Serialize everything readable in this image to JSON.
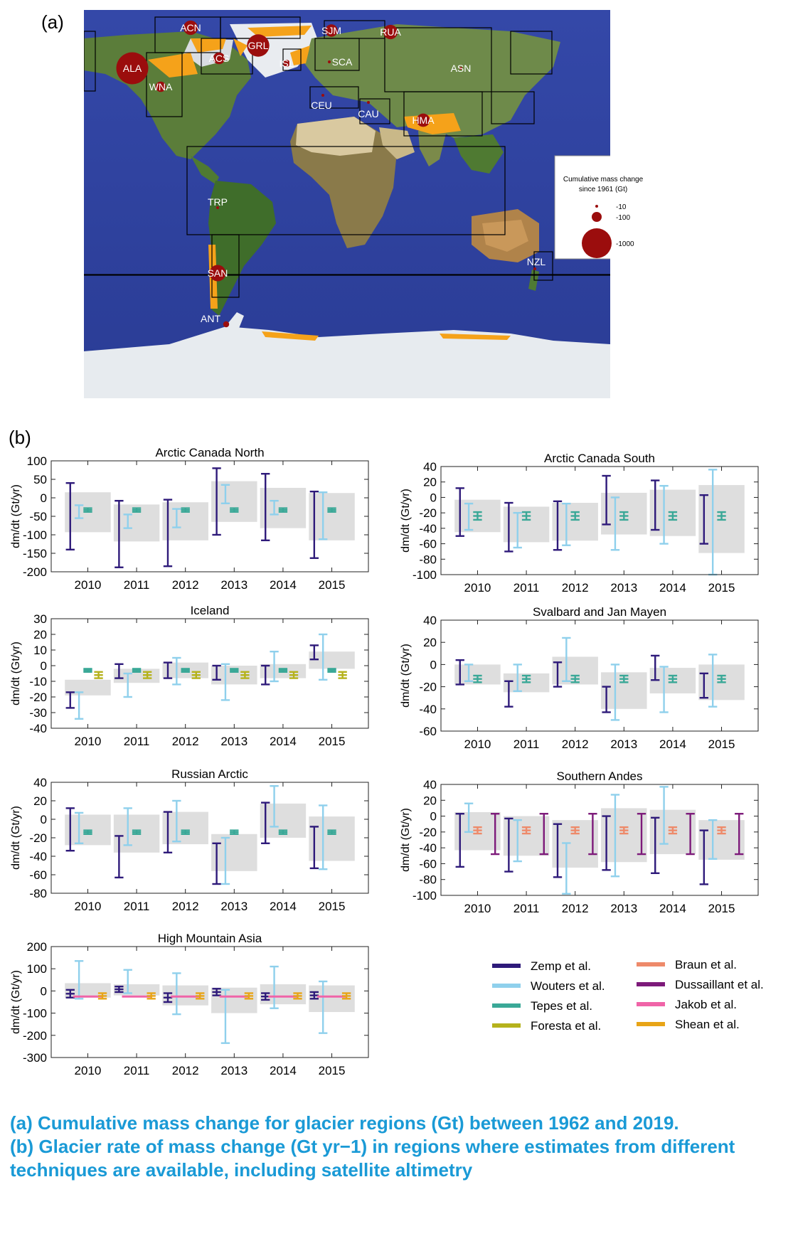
{
  "panel_a_label": "(a)",
  "panel_b_label": "(b)",
  "map": {
    "regions": [
      {
        "code": "ALA",
        "mass_gt": -1150
      },
      {
        "code": "ACN",
        "mass_gt": -230
      },
      {
        "code": "GRL",
        "mass_gt": -560
      },
      {
        "code": "SJM",
        "mass_gt": -170
      },
      {
        "code": "RUA",
        "mass_gt": -230
      },
      {
        "code": "ACS",
        "mass_gt": -155
      },
      {
        "code": "ISL",
        "mass_gt": -55
      },
      {
        "code": "SCA",
        "mass_gt": -5
      },
      {
        "code": "ASN",
        "mass_gt": -3
      },
      {
        "code": "WNA",
        "mass_gt": -120
      },
      {
        "code": "CEU",
        "mass_gt": -8
      },
      {
        "code": "CAU",
        "mass_gt": -5
      },
      {
        "code": "HMA",
        "mass_gt": -200
      },
      {
        "code": "TRP",
        "mass_gt": -5
      },
      {
        "code": "SAN",
        "mass_gt": -300
      },
      {
        "code": "NZL",
        "mass_gt": -5
      },
      {
        "code": "ANT",
        "mass_gt": -40
      }
    ],
    "legend": {
      "title_line1": "Cumulative mass change",
      "title_line2": "since 1961 (Gt)",
      "entries": [
        "-10",
        "-100",
        "-1000"
      ]
    }
  },
  "chart_data": [
    {
      "type": "errorbar",
      "title": "Arctic Canada North",
      "ylabel": "dm/dt (Gt/yr)",
      "ylim": [
        -200,
        100
      ],
      "yticks": [
        100,
        50,
        0,
        -50,
        -100,
        -150,
        -200
      ],
      "categories": [
        "2010",
        "2011",
        "2012",
        "2013",
        "2014",
        "2015"
      ],
      "grey_boxes": [
        [
          -93,
          15
        ],
        [
          -118,
          -18
        ],
        [
          -115,
          -12
        ],
        [
          -65,
          45
        ],
        [
          -82,
          27
        ],
        [
          -115,
          13
        ]
      ],
      "series": [
        {
          "name": "Zemp et al.",
          "intervals": [
            [
              -140,
              40
            ],
            [
              -188,
              -8
            ],
            [
              -185,
              -5
            ],
            [
              -100,
              80
            ],
            [
              -115,
              65
            ],
            [
              -163,
              17
            ]
          ]
        },
        {
          "name": "Wouters et al.",
          "intervals": [
            [
              -55,
              -20
            ],
            [
              -82,
              -45
            ],
            [
              -80,
              -30
            ],
            [
              -15,
              35
            ],
            [
              -45,
              -8
            ],
            [
              -112,
              15
            ]
          ]
        },
        {
          "name": "Tepes et al.",
          "intervals": [
            [
              -38,
              -28
            ],
            [
              -38,
              -28
            ],
            [
              -38,
              -28
            ],
            [
              -38,
              -28
            ],
            [
              -38,
              -28
            ],
            [
              -38,
              -28
            ]
          ]
        }
      ]
    },
    {
      "type": "errorbar",
      "title": "Arctic Canada South",
      "ylabel": "dm/dt (Gt/yr)",
      "ylim": [
        -100,
        40
      ],
      "yticks": [
        40,
        20,
        0,
        -20,
        -40,
        -60,
        -80,
        -100
      ],
      "categories": [
        "2010",
        "2011",
        "2012",
        "2013",
        "2014",
        "2015"
      ],
      "grey_boxes": [
        [
          -45,
          -3
        ],
        [
          -58,
          -12
        ],
        [
          -56,
          -7
        ],
        [
          -48,
          6
        ],
        [
          -50,
          10
        ],
        [
          -72,
          16
        ]
      ],
      "series": [
        {
          "name": "Zemp et al.",
          "intervals": [
            [
              -50,
              12
            ],
            [
              -70,
              -7
            ],
            [
              -68,
              -5
            ],
            [
              -35,
              28
            ],
            [
              -42,
              22
            ],
            [
              -60,
              3
            ]
          ]
        },
        {
          "name": "Wouters et al.",
          "intervals": [
            [
              -42,
              -8
            ],
            [
              -65,
              -20
            ],
            [
              -62,
              -8
            ],
            [
              -68,
              0
            ],
            [
              -60,
              15
            ],
            [
              -100,
              36
            ]
          ]
        },
        {
          "name": "Tepes et al.",
          "intervals": [
            [
              -29,
              -19
            ],
            [
              -29,
              -19
            ],
            [
              -29,
              -19
            ],
            [
              -29,
              -19
            ],
            [
              -29,
              -19
            ],
            [
              -29,
              -19
            ]
          ]
        }
      ]
    },
    {
      "type": "errorbar",
      "title": "Iceland",
      "ylabel": "dm/dt (Gt/yr)",
      "ylim": [
        -40,
        30
      ],
      "yticks": [
        30,
        20,
        10,
        0,
        -10,
        -20,
        -30,
        -40
      ],
      "categories": [
        "2010",
        "2011",
        "2012",
        "2013",
        "2014",
        "2015"
      ],
      "grey_boxes": [
        [
          -19,
          -9
        ],
        [
          -11,
          -2
        ],
        [
          -8,
          2
        ],
        [
          -12,
          0
        ],
        [
          -8,
          1
        ],
        [
          -2,
          9
        ]
      ],
      "series": [
        {
          "name": "Zemp et al.",
          "intervals": [
            [
              -27,
              -17
            ],
            [
              -8,
              1
            ],
            [
              -8,
              2
            ],
            [
              -9,
              0
            ],
            [
              -12,
              0
            ],
            [
              4,
              13
            ]
          ]
        },
        {
          "name": "Wouters et al.",
          "intervals": [
            [
              -34,
              -17
            ],
            [
              -20,
              -5
            ],
            [
              -12,
              5
            ],
            [
              -22,
              1
            ],
            [
              -10,
              9
            ],
            [
              -9,
              20
            ]
          ]
        },
        {
          "name": "Tepes et al.",
          "intervals": [
            [
              -4,
              -2
            ],
            [
              -4,
              -2
            ],
            [
              -4,
              -2
            ],
            [
              -4,
              -2
            ],
            [
              -4,
              -2
            ],
            [
              -4,
              -2
            ]
          ]
        },
        {
          "name": "Foresta et al.",
          "intervals": [
            [
              -8,
              -4
            ],
            [
              -8,
              -4
            ],
            [
              -8,
              -4
            ],
            [
              -8,
              -4
            ],
            [
              -8,
              -4
            ],
            [
              -8,
              -4
            ]
          ]
        }
      ]
    },
    {
      "type": "errorbar",
      "title": "Svalbard and Jan Mayen",
      "ylabel": "dm/dt (Gt/yr)",
      "ylim": [
        -60,
        40
      ],
      "yticks": [
        40,
        20,
        0,
        -20,
        -40,
        -60
      ],
      "categories": [
        "2010",
        "2011",
        "2012",
        "2013",
        "2014",
        "2015"
      ],
      "grey_boxes": [
        [
          -18,
          0
        ],
        [
          -25,
          -8
        ],
        [
          -18,
          7
        ],
        [
          -40,
          -7
        ],
        [
          -26,
          -3
        ],
        [
          -32,
          0
        ]
      ],
      "series": [
        {
          "name": "Zemp et al.",
          "intervals": [
            [
              -18,
              4
            ],
            [
              -38,
              -15
            ],
            [
              -20,
              2
            ],
            [
              -43,
              -20
            ],
            [
              -14,
              8
            ],
            [
              -30,
              -8
            ]
          ]
        },
        {
          "name": "Wouters et al.",
          "intervals": [
            [
              -15,
              0
            ],
            [
              -24,
              0
            ],
            [
              -15,
              24
            ],
            [
              -50,
              0
            ],
            [
              -43,
              -2
            ],
            [
              -38,
              9
            ]
          ]
        },
        {
          "name": "Tepes et al.",
          "intervals": [
            [
              -16,
              -10
            ],
            [
              -16,
              -10
            ],
            [
              -16,
              -10
            ],
            [
              -16,
              -10
            ],
            [
              -16,
              -10
            ],
            [
              -16,
              -10
            ]
          ]
        }
      ]
    },
    {
      "type": "errorbar",
      "title": "Russian Arctic",
      "ylabel": "dm/dt (Gt/yr)",
      "ylim": [
        -80,
        40
      ],
      "yticks": [
        40,
        20,
        0,
        -20,
        -40,
        -60,
        -80
      ],
      "categories": [
        "2010",
        "2011",
        "2012",
        "2013",
        "2014",
        "2015"
      ],
      "grey_boxes": [
        [
          -28,
          5
        ],
        [
          -36,
          5
        ],
        [
          -27,
          8
        ],
        [
          -56,
          -16
        ],
        [
          -20,
          17
        ],
        [
          -45,
          3
        ]
      ],
      "series": [
        {
          "name": "Zemp et al.",
          "intervals": [
            [
              -34,
              12
            ],
            [
              -63,
              -18
            ],
            [
              -36,
              8
            ],
            [
              -70,
              -26
            ],
            [
              -26,
              18
            ],
            [
              -53,
              -8
            ]
          ]
        },
        {
          "name": "Wouters et al.",
          "intervals": [
            [
              -26,
              7
            ],
            [
              -28,
              12
            ],
            [
              -24,
              20
            ],
            [
              -70,
              -20
            ],
            [
              -8,
              36
            ],
            [
              -54,
              15
            ]
          ]
        },
        {
          "name": "Tepes et al.",
          "intervals": [
            [
              -16,
              -12
            ],
            [
              -16,
              -12
            ],
            [
              -16,
              -12
            ],
            [
              -16,
              -12
            ],
            [
              -16,
              -12
            ],
            [
              -16,
              -12
            ]
          ]
        }
      ]
    },
    {
      "type": "errorbar",
      "title": "Southern Andes",
      "ylabel": "dm/dt (Gt/yr)",
      "ylim": [
        -100,
        40
      ],
      "yticks": [
        40,
        20,
        0,
        -20,
        -40,
        -60,
        -80,
        -100
      ],
      "categories": [
        "2010",
        "2011",
        "2012",
        "2013",
        "2014",
        "2015"
      ],
      "grey_boxes": [
        [
          -43,
          5
        ],
        [
          -50,
          0
        ],
        [
          -65,
          -5
        ],
        [
          -58,
          10
        ],
        [
          -48,
          8
        ],
        [
          -55,
          -5
        ]
      ],
      "series": [
        {
          "name": "Zemp et al.",
          "intervals": [
            [
              -64,
              3
            ],
            [
              -70,
              -3
            ],
            [
              -77,
              -10
            ],
            [
              -68,
              0
            ],
            [
              -72,
              -2
            ],
            [
              -86,
              -18
            ]
          ]
        },
        {
          "name": "Wouters et al.",
          "intervals": [
            [
              -20,
              16
            ],
            [
              -57,
              -5
            ],
            [
              -98,
              -34
            ],
            [
              -76,
              27
            ],
            [
              -35,
              37
            ],
            [
              -54,
              -5
            ]
          ]
        },
        {
          "name": "Braun et al.",
          "intervals": [
            [
              -22,
              -14
            ],
            [
              -22,
              -14
            ],
            [
              -22,
              -14
            ],
            [
              -22,
              -14
            ],
            [
              -22,
              -14
            ],
            [
              -22,
              -14
            ]
          ]
        },
        {
          "name": "Dussaillant et al.",
          "intervals": [
            [
              -48,
              3
            ],
            [
              -48,
              3
            ],
            [
              -48,
              3
            ],
            [
              -48,
              3
            ],
            [
              -48,
              3
            ],
            [
              -48,
              3
            ]
          ]
        }
      ]
    },
    {
      "type": "errorbar",
      "title": "High Mountain Asia",
      "ylabel": "dm/dt (Gt/yr)",
      "ylim": [
        -300,
        200
      ],
      "yticks": [
        200,
        100,
        0,
        -100,
        -200,
        -300
      ],
      "categories": [
        "2010",
        "2011",
        "2012",
        "2013",
        "2014",
        "2015"
      ],
      "grey_boxes": [
        [
          -30,
          35
        ],
        [
          -20,
          30
        ],
        [
          -65,
          25
        ],
        [
          -100,
          15
        ],
        [
          -60,
          30
        ],
        [
          -95,
          25
        ]
      ],
      "series": [
        {
          "name": "Zemp et al.",
          "intervals": [
            [
              -30,
              5
            ],
            [
              -5,
              20
            ],
            [
              -50,
              -10
            ],
            [
              -20,
              10
            ],
            [
              -40,
              -10
            ],
            [
              -35,
              -5
            ]
          ]
        },
        {
          "name": "Wouters et al.",
          "intervals": [
            [
              -35,
              135
            ],
            [
              -10,
              95
            ],
            [
              -105,
              80
            ],
            [
              -235,
              5
            ],
            [
              -78,
              110
            ],
            [
              -190,
              43
            ]
          ]
        },
        {
          "name": "Jakob et al.",
          "intervals": [
            [
              -25,
              -25
            ],
            [
              -25,
              -25
            ],
            [
              -25,
              -25
            ],
            [
              -25,
              -25
            ],
            [
              -25,
              -25
            ],
            [
              -25,
              -25
            ]
          ]
        },
        {
          "name": "Shean et al.",
          "intervals": [
            [
              -35,
              -10
            ],
            [
              -35,
              -10
            ],
            [
              -35,
              -10
            ],
            [
              -35,
              -10
            ],
            [
              -35,
              -10
            ],
            [
              -35,
              -10
            ]
          ]
        }
      ]
    }
  ],
  "legend": {
    "entries": [
      {
        "name": "Zemp et al.",
        "color": "#2e1a7a"
      },
      {
        "name": "Wouters et al.",
        "color": "#8fd0ec"
      },
      {
        "name": "Tepes et al.",
        "color": "#3aa897"
      },
      {
        "name": "Foresta et al.",
        "color": "#b5b21c"
      },
      {
        "name": "Braun et al.",
        "color": "#ee8a6a"
      },
      {
        "name": "Dussaillant et al.",
        "color": "#7d1a7a"
      },
      {
        "name": "Jakob et al.",
        "color": "#f064a8"
      },
      {
        "name": "Shean et al.",
        "color": "#e8a416"
      }
    ]
  },
  "caption": {
    "line_a": "(a) Cumulative mass change for glacier regions (Gt) between 1962 and 2019.",
    "line_b": "(b) Glacier rate of mass change (Gt yr−1) in regions where estimates from different techniques are available, including satellite altimetry"
  }
}
